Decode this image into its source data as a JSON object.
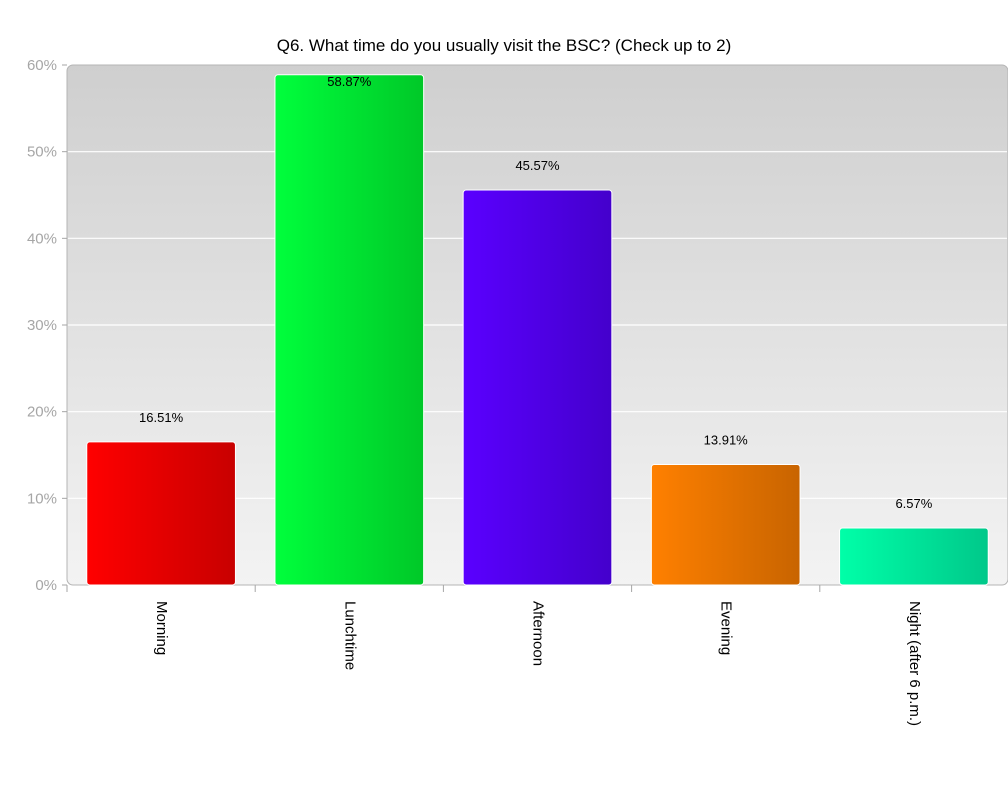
{
  "chart_data": {
    "type": "bar",
    "title": "Q6. What time do you usually visit the BSC? (Check up to 2)",
    "xlabel": "",
    "ylabel": "",
    "categories": [
      "Morning",
      "Lunchtime",
      "Afternoon",
      "Evening",
      "Night (after 6 p.m.)"
    ],
    "values": [
      16.51,
      58.87,
      45.57,
      13.91,
      6.57
    ],
    "data_labels": [
      "16.51%",
      "58.87%",
      "45.57%",
      "13.91%",
      "6.57%"
    ],
    "ylim": [
      0,
      60
    ],
    "y_ticks": [
      "0%",
      "10%",
      "20%",
      "30%",
      "40%",
      "50%",
      "60%"
    ],
    "grid": true,
    "legend": "none",
    "bar_colors": [
      [
        "#ff0000",
        "#c80000"
      ],
      [
        "#00ff3c",
        "#00c828"
      ],
      [
        "#5a00ff",
        "#4400cc"
      ],
      [
        "#ff8000",
        "#c86400"
      ],
      [
        "#00ffa8",
        "#00c88a"
      ]
    ]
  }
}
